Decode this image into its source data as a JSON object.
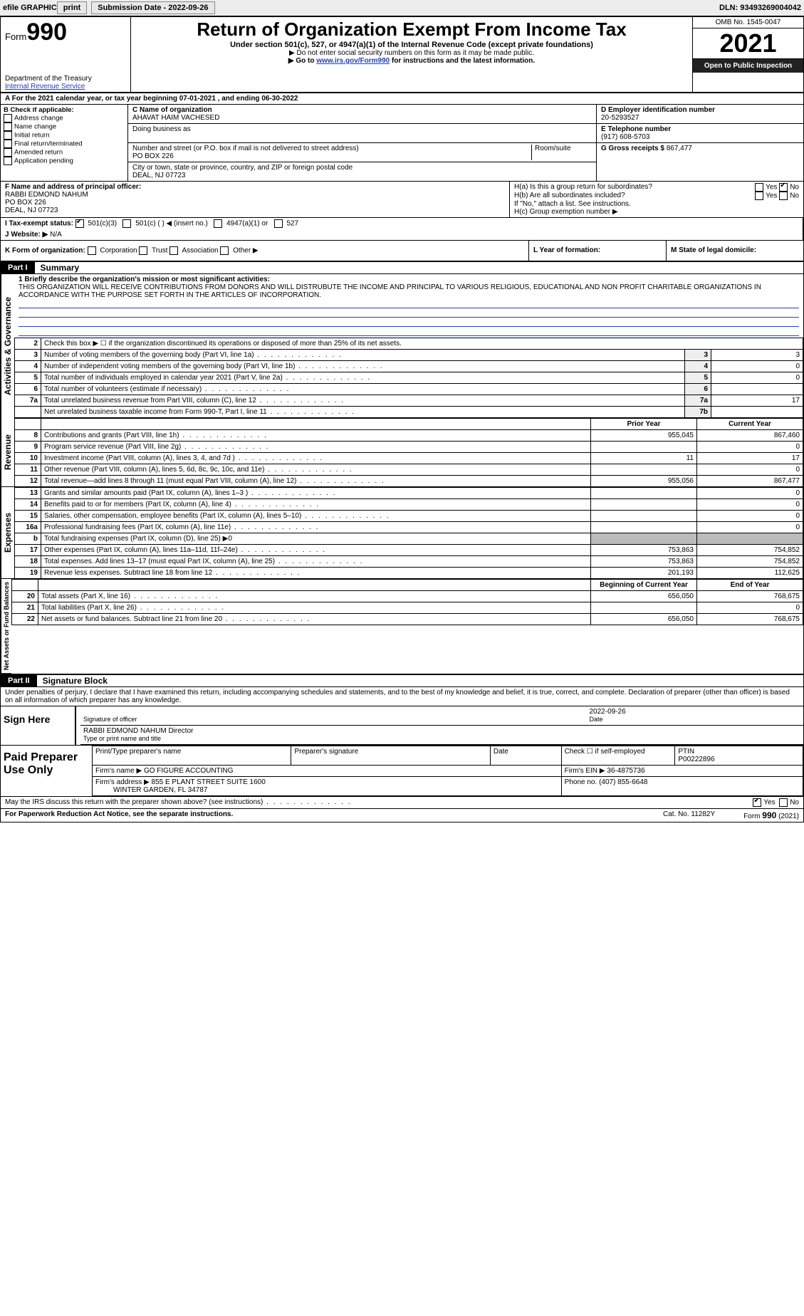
{
  "topbar": {
    "efile": "efile GRAPHIC",
    "print": "print",
    "subdate_label": "Submission Date - ",
    "subdate": "2022-09-26",
    "dln_label": "DLN: ",
    "dln": "93493269004042"
  },
  "header": {
    "form_small": "Form",
    "form_big": "990",
    "dept": "Department of the Treasury",
    "irs": "Internal Revenue Service",
    "title": "Return of Organization Exempt From Income Tax",
    "sub": "Under section 501(c), 527, or 4947(a)(1) of the Internal Revenue Code (except private foundations)",
    "note1": "▶ Do not enter social security numbers on this form as it may be made public.",
    "note2_pre": "▶ Go to ",
    "note2_link": "www.irs.gov/Form990",
    "note2_post": " for instructions and the latest information.",
    "omb": "OMB No. 1545-0047",
    "year": "2021",
    "open": "Open to Public Inspection"
  },
  "lineA": "A For the 2021 calendar year, or tax year beginning 07-01-2021    , and ending 06-30-2022",
  "boxB": {
    "label": "B Check if applicable:",
    "items": [
      "Address change",
      "Name change",
      "Initial return",
      "Final return/terminated",
      "Amended return",
      "Application pending"
    ]
  },
  "boxC": {
    "label_name": "C Name of organization",
    "org": "AHAVAT HAIM VACHESED",
    "dba_label": "Doing business as",
    "addr_label": "Number and street (or P.O. box if mail is not delivered to street address)",
    "room_label": "Room/suite",
    "addr": "PO BOX 226",
    "city_label": "City or town, state or province, country, and ZIP or foreign postal code",
    "city": "DEAL, NJ  07723"
  },
  "boxD": {
    "label": "D Employer identification number",
    "ein": "20-5293527"
  },
  "boxE": {
    "label": "E Telephone number",
    "phone": "(917) 608-5703"
  },
  "boxG": {
    "label": "G Gross receipts $",
    "val": "867,477"
  },
  "boxF": {
    "label": "F Name and address of principal officer:",
    "name": "RABBI EDMOND NAHUM",
    "addr": "PO BOX 226",
    "city": "DEAL, NJ  07723"
  },
  "boxH": {
    "ha": "H(a)  Is this a group return for subordinates?",
    "hb": "H(b)  Are all subordinates included?",
    "hbnote": "If \"No,\" attach a list. See instructions.",
    "hc": "H(c)  Group exemption number ▶",
    "yes": "Yes",
    "no": "No"
  },
  "boxI": {
    "label": "I  Tax-exempt status:",
    "o1": "501(c)(3)",
    "o2": "501(c) (   ) ◀ (insert no.)",
    "o3": "4947(a)(1) or",
    "o4": "527"
  },
  "boxJ": {
    "label": "J  Website: ▶",
    "val": "N/A"
  },
  "boxK": {
    "label": "K Form of organization:",
    "o1": "Corporation",
    "o2": "Trust",
    "o3": "Association",
    "o4": "Other ▶"
  },
  "boxL": {
    "label": "L Year of formation:"
  },
  "boxM": {
    "label": "M State of legal domicile:"
  },
  "part1": {
    "label": "Part I",
    "title": "Summary"
  },
  "summary1": {
    "q": "1  Briefly describe the organization's mission or most significant activities:",
    "text": "THIS ORGANIZATION WILL RECEIVE CONTRIBUTIONS FROM DONORS AND WILL DISTRUBUTE THE INCOME AND PRINCIPAL TO VARIOUS RELIGIOUS, EDUCATIONAL AND NON PROFIT CHARITABLE ORGANIZATIONS IN ACCORDANCE WITH THE PURPOSE SET FORTH IN THE ARTICLES OF INCORPORATION."
  },
  "vert_gov": "Activities & Governance",
  "vert_rev": "Revenue",
  "vert_exp": "Expenses",
  "vert_net": "Net Assets or Fund Balances",
  "gov_rows": [
    {
      "n": "2",
      "t": "Check this box ▶ ☐  if the organization discontinued its operations or disposed of more than 25% of its net assets."
    },
    {
      "n": "3",
      "t": "Number of voting members of the governing body (Part VI, line 1a)",
      "box": "3",
      "v": "3"
    },
    {
      "n": "4",
      "t": "Number of independent voting members of the governing body (Part VI, line 1b)",
      "box": "4",
      "v": "0"
    },
    {
      "n": "5",
      "t": "Total number of individuals employed in calendar year 2021 (Part V, line 2a)",
      "box": "5",
      "v": "0"
    },
    {
      "n": "6",
      "t": "Total number of volunteers (estimate if necessary)",
      "box": "6",
      "v": ""
    },
    {
      "n": "7a",
      "t": "Total unrelated business revenue from Part VIII, column (C), line 12",
      "box": "7a",
      "v": "17"
    },
    {
      "n": "",
      "t": "Net unrelated business taxable income from Form 990-T, Part I, line 11",
      "box": "7b",
      "v": ""
    }
  ],
  "pycy": {
    "py": "Prior Year",
    "cy": "Current Year"
  },
  "rev_rows": [
    {
      "n": "8",
      "t": "Contributions and grants (Part VIII, line 1h)",
      "py": "955,045",
      "cy": "867,460"
    },
    {
      "n": "9",
      "t": "Program service revenue (Part VIII, line 2g)",
      "py": "",
      "cy": "0"
    },
    {
      "n": "10",
      "t": "Investment income (Part VIII, column (A), lines 3, 4, and 7d )",
      "py": "11",
      "cy": "17"
    },
    {
      "n": "11",
      "t": "Other revenue (Part VIII, column (A), lines 5, 6d, 8c, 9c, 10c, and 11e)",
      "py": "",
      "cy": "0"
    },
    {
      "n": "12",
      "t": "Total revenue—add lines 8 through 11 (must equal Part VIII, column (A), line 12)",
      "py": "955,056",
      "cy": "867,477"
    }
  ],
  "exp_rows": [
    {
      "n": "13",
      "t": "Grants and similar amounts paid (Part IX, column (A), lines 1–3 )",
      "py": "",
      "cy": "0"
    },
    {
      "n": "14",
      "t": "Benefits paid to or for members (Part IX, column (A), line 4)",
      "py": "",
      "cy": "0"
    },
    {
      "n": "15",
      "t": "Salaries, other compensation, employee benefits (Part IX, column (A), lines 5–10)",
      "py": "",
      "cy": "0"
    },
    {
      "n": "16a",
      "t": "Professional fundraising fees (Part IX, column (A), line 11e)",
      "py": "",
      "cy": "0"
    },
    {
      "n": "b",
      "t": "Total fundraising expenses (Part IX, column (D), line 25) ▶0",
      "py": null,
      "cy": null
    },
    {
      "n": "17",
      "t": "Other expenses (Part IX, column (A), lines 11a–11d, 11f–24e)",
      "py": "753,863",
      "cy": "754,852"
    },
    {
      "n": "18",
      "t": "Total expenses. Add lines 13–17 (must equal Part IX, column (A), line 25)",
      "py": "753,863",
      "cy": "754,852"
    },
    {
      "n": "19",
      "t": "Revenue less expenses. Subtract line 18 from line 12",
      "py": "201,193",
      "cy": "112,625"
    }
  ],
  "bceoy": {
    "b": "Beginning of Current Year",
    "e": "End of Year"
  },
  "net_rows": [
    {
      "n": "20",
      "t": "Total assets (Part X, line 16)",
      "py": "656,050",
      "cy": "768,675"
    },
    {
      "n": "21",
      "t": "Total liabilities (Part X, line 26)",
      "py": "",
      "cy": "0"
    },
    {
      "n": "22",
      "t": "Net assets or fund balances. Subtract line 21 from line 20",
      "py": "656,050",
      "cy": "768,675"
    }
  ],
  "part2": {
    "label": "Part II",
    "title": "Signature Block"
  },
  "decl": "Under penalties of perjury, I declare that I have examined this return, including accompanying schedules and statements, and to the best of my knowledge and belief, it is true, correct, and complete. Declaration of preparer (other than officer) is based on all information of which preparer has any knowledge.",
  "sign": {
    "here": "Sign Here",
    "sig_officer": "Signature of officer",
    "date": "Date",
    "sigdate": "2022-09-26",
    "name": "RABBI EDMOND NAHUM  Director",
    "type": "Type or print name and title"
  },
  "prep": {
    "label": "Paid Preparer Use Only",
    "h_name": "Print/Type preparer's name",
    "h_sig": "Preparer's signature",
    "h_date": "Date",
    "h_check": "Check ☐ if self-employed",
    "h_ptin": "PTIN",
    "ptin": "P00222896",
    "firm_label": "Firm's name  ▶",
    "firm": "GO FIGURE ACCOUNTING",
    "ein_label": "Firm's EIN ▶",
    "ein": "36-4875736",
    "addr_label": "Firm's address ▶",
    "addr1": "855 E PLANT STREET SUITE 1600",
    "addr2": "WINTER GARDEN, FL  34787",
    "phone_label": "Phone no.",
    "phone": "(407) 855-6648"
  },
  "discuss": "May the IRS discuss this return with the preparer shown above? (see instructions)",
  "foot": {
    "pra": "For Paperwork Reduction Act Notice, see the separate instructions.",
    "cat": "Cat. No. 11282Y",
    "form": "Form 990 (2021)"
  }
}
